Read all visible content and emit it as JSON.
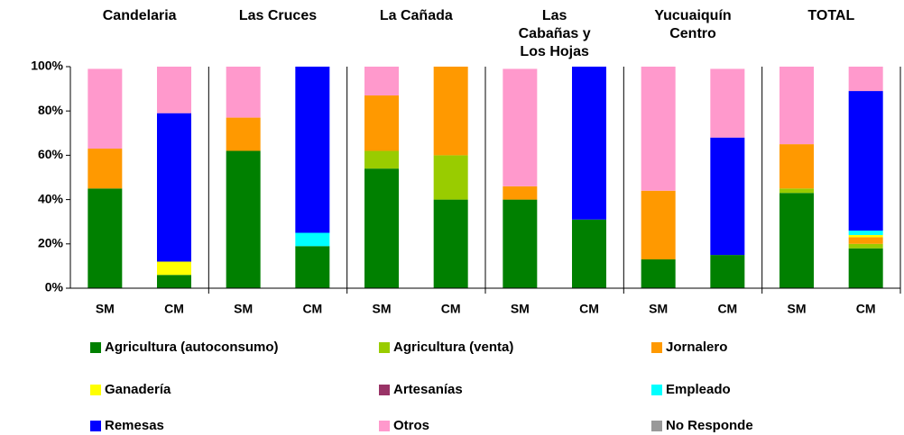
{
  "chart_data": {
    "type": "bar",
    "stacked": true,
    "groups": [
      "Candelaria",
      "Las Cruces",
      "La Cañada",
      "Las Cabañas y Los Hojas",
      "Yucuaiquín Centro",
      "TOTAL"
    ],
    "categories": [
      "SM",
      "CM",
      "SM",
      "CM",
      "SM",
      "CM",
      "SM",
      "CM",
      "SM",
      "CM",
      "SM",
      "CM"
    ],
    "series": [
      {
        "name": "Agricultura (autoconsumo)",
        "color": "#008000",
        "values": [
          45,
          6,
          62,
          19,
          54,
          40,
          40,
          31,
          13,
          15,
          43,
          18
        ]
      },
      {
        "name": "Agricultura (venta)",
        "color": "#99cc00",
        "values": [
          0,
          0,
          0,
          0,
          8,
          20,
          0,
          0,
          0,
          0,
          2,
          2
        ]
      },
      {
        "name": "Jornalero",
        "color": "#ff9900",
        "values": [
          18,
          0,
          15,
          0,
          25,
          40,
          6,
          0,
          31,
          0,
          20,
          3
        ]
      },
      {
        "name": "Ganadería",
        "color": "#ffff00",
        "values": [
          0,
          6,
          0,
          0,
          0,
          0,
          0,
          0,
          0,
          0,
          0,
          1
        ]
      },
      {
        "name": "Artesanías",
        "color": "#993366",
        "values": [
          0,
          0,
          0,
          0,
          0,
          0,
          0,
          0,
          0,
          0,
          0,
          0
        ]
      },
      {
        "name": "Empleado",
        "color": "#00ffff",
        "values": [
          0,
          0,
          0,
          6,
          0,
          0,
          0,
          0,
          0,
          0,
          0,
          2
        ]
      },
      {
        "name": "Remesas",
        "color": "#0000ff",
        "values": [
          0,
          67,
          0,
          75,
          0,
          0,
          0,
          69,
          0,
          53,
          0,
          63
        ]
      },
      {
        "name": "Otros",
        "color": "#ff99cc",
        "values": [
          36,
          21,
          23,
          0,
          13,
          0,
          53,
          0,
          56,
          31,
          35,
          11
        ]
      },
      {
        "name": "No Responde",
        "color": "#999999",
        "values": [
          0,
          0,
          0,
          0,
          0,
          0,
          0,
          0,
          0,
          0,
          0,
          0
        ]
      }
    ],
    "ylim": [
      0,
      100
    ],
    "yticks": [
      {
        "value": 0,
        "label": "0%"
      },
      {
        "value": 20,
        "label": "20%"
      },
      {
        "value": 40,
        "label": "40%"
      },
      {
        "value": 60,
        "label": "60%"
      },
      {
        "value": 80,
        "label": "80%"
      },
      {
        "value": 100,
        "label": "100%"
      }
    ]
  }
}
